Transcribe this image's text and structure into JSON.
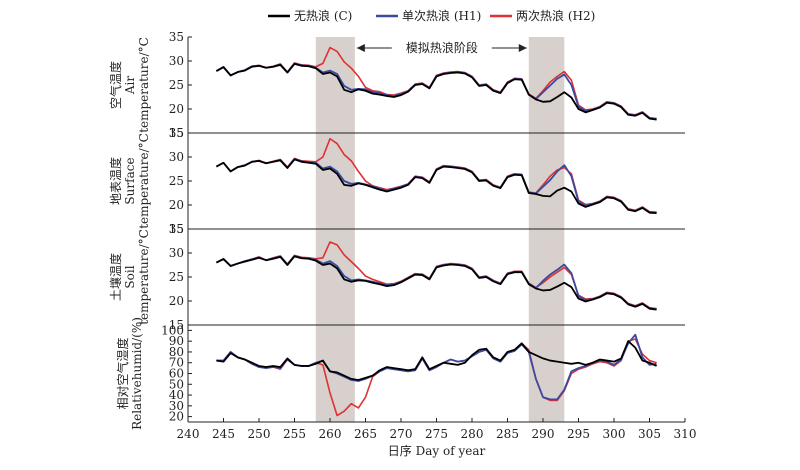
{
  "chart_data": {
    "type": "line",
    "xlabel": "日序 Day of year",
    "xlim": [
      240,
      310
    ],
    "xticks": [
      240,
      245,
      250,
      255,
      260,
      265,
      270,
      275,
      280,
      285,
      290,
      295,
      300,
      305,
      310
    ],
    "x_start": 244,
    "colors": {
      "C": "#000000",
      "H1": "#3b4aa0",
      "H2": "#e03030",
      "shade": "#d8d0cc"
    },
    "legend": {
      "placement": "top-center",
      "items": [
        {
          "key": "C",
          "label": "无热浪 (C)"
        },
        {
          "key": "H1",
          "label": "单次热浪 (H1)"
        },
        {
          "key": "H2",
          "label": "两次热浪 (H2)"
        }
      ]
    },
    "annotation": {
      "text": "模拟热浪阶段",
      "x_from": 263.5,
      "x_to": 288
    },
    "heatwave_periods": [
      [
        258,
        263.5
      ],
      [
        288,
        293
      ]
    ],
    "panels": [
      {
        "id": "air",
        "ylabel_lines": [
          "空气温度",
          "Air",
          "temperature/°C"
        ],
        "ylim": [
          15,
          35
        ],
        "yticks": [
          15,
          20,
          25,
          30,
          35
        ],
        "series": {
          "C": [
            27.9,
            28.7,
            27.0,
            27.7,
            28.0,
            28.8,
            29.0,
            28.6,
            28.8,
            29.2,
            27.6,
            29.4,
            29.0,
            28.9,
            28.5,
            27.3,
            27.6,
            26.8,
            24.0,
            23.5,
            24.1,
            23.8,
            23.2,
            23.0,
            22.7,
            22.5,
            22.9,
            23.6,
            25.0,
            25.2,
            24.3,
            26.8,
            27.3,
            27.5,
            27.6,
            27.4,
            26.6,
            24.8,
            25.0,
            23.8,
            23.3,
            25.4,
            26.2,
            26.1,
            23.0,
            22.0,
            21.5,
            21.6,
            22.5,
            23.5,
            22.4,
            20.0,
            19.3,
            19.8,
            20.3,
            21.3,
            21.1,
            20.4,
            18.8,
            18.6,
            19.2,
            18.0,
            17.8
          ],
          "H1": [
            27.9,
            28.8,
            27.0,
            27.7,
            28.1,
            28.9,
            29.0,
            28.6,
            28.8,
            29.3,
            27.6,
            29.5,
            29.1,
            29.0,
            28.6,
            27.6,
            28.0,
            27.3,
            24.8,
            24.0,
            24.2,
            24.1,
            23.5,
            23.3,
            22.9,
            22.7,
            23.1,
            23.7,
            25.1,
            25.3,
            24.4,
            26.9,
            27.4,
            27.6,
            27.7,
            27.5,
            26.7,
            24.9,
            25.1,
            23.9,
            23.4,
            25.5,
            26.3,
            26.2,
            23.0,
            22.1,
            23.5,
            24.9,
            26.3,
            27.2,
            25.0,
            20.5,
            19.6,
            19.9,
            20.4,
            21.4,
            21.2,
            20.5,
            18.9,
            18.7,
            19.3,
            18.1,
            17.9
          ],
          "H2": [
            27.9,
            28.8,
            27.0,
            27.7,
            28.1,
            28.9,
            29.1,
            28.6,
            28.9,
            29.4,
            27.7,
            29.6,
            29.2,
            29.1,
            28.8,
            29.5,
            32.8,
            32.0,
            29.8,
            28.5,
            26.8,
            24.5,
            23.8,
            23.6,
            23.0,
            22.9,
            23.3,
            23.8,
            25.2,
            25.4,
            24.5,
            27.0,
            27.5,
            27.7,
            27.8,
            27.6,
            26.8,
            25.0,
            25.2,
            24.0,
            23.5,
            25.6,
            26.4,
            26.3,
            23.1,
            22.2,
            23.8,
            25.6,
            26.8,
            27.8,
            26.0,
            20.8,
            19.8,
            20.0,
            20.5,
            21.5,
            21.3,
            20.6,
            19.0,
            18.8,
            19.4,
            18.2,
            18.0
          ]
        }
      },
      {
        "id": "surface",
        "ylabel_lines": [
          "地表温度",
          "Surface",
          "temperature/°C"
        ],
        "ylim": [
          15,
          35
        ],
        "yticks": [
          15,
          20,
          25,
          30,
          35
        ],
        "series": {
          "C": [
            28.0,
            28.8,
            27.0,
            27.9,
            28.2,
            29.0,
            29.2,
            28.7,
            29.0,
            29.3,
            27.7,
            29.5,
            29.0,
            28.8,
            28.6,
            27.3,
            27.6,
            26.5,
            24.2,
            24.0,
            24.5,
            24.2,
            23.7,
            23.2,
            22.8,
            23.2,
            23.6,
            24.2,
            25.8,
            25.6,
            24.6,
            27.3,
            28.0,
            27.9,
            27.7,
            27.5,
            26.8,
            25.0,
            25.1,
            24.0,
            23.5,
            25.8,
            26.3,
            26.2,
            22.5,
            22.3,
            21.9,
            21.8,
            23.0,
            23.6,
            22.8,
            20.3,
            19.6,
            20.1,
            20.6,
            21.6,
            21.4,
            20.7,
            19.0,
            18.7,
            19.4,
            18.4,
            18.3
          ],
          "H1": [
            28.0,
            28.8,
            27.0,
            27.9,
            28.3,
            29.0,
            29.2,
            28.7,
            29.0,
            29.4,
            27.8,
            29.6,
            29.1,
            28.9,
            28.8,
            27.6,
            28.0,
            27.0,
            25.0,
            24.4,
            24.6,
            24.3,
            23.9,
            23.4,
            23.0,
            23.4,
            23.8,
            24.3,
            25.9,
            25.7,
            24.7,
            27.4,
            28.1,
            28.0,
            27.8,
            27.6,
            26.9,
            25.1,
            25.2,
            24.1,
            23.6,
            25.9,
            26.4,
            26.3,
            22.6,
            22.4,
            23.8,
            25.2,
            27.0,
            28.3,
            26.0,
            20.7,
            19.9,
            20.2,
            20.7,
            21.7,
            21.5,
            20.8,
            19.1,
            18.8,
            19.5,
            18.5,
            18.4
          ],
          "H2": [
            28.0,
            28.8,
            27.0,
            27.9,
            28.3,
            29.0,
            29.3,
            28.7,
            29.1,
            29.5,
            27.9,
            29.7,
            29.2,
            29.1,
            29.0,
            30.0,
            33.8,
            32.8,
            30.5,
            29.2,
            27.0,
            25.0,
            24.0,
            23.6,
            23.2,
            23.5,
            23.9,
            24.4,
            26.0,
            25.8,
            24.8,
            27.5,
            28.2,
            28.1,
            27.9,
            27.7,
            27.0,
            25.2,
            25.3,
            24.2,
            23.7,
            26.0,
            26.5,
            26.4,
            22.7,
            22.5,
            24.2,
            26.0,
            27.3,
            27.8,
            26.5,
            21.0,
            20.1,
            20.3,
            20.8,
            21.8,
            21.6,
            20.9,
            19.2,
            18.9,
            19.6,
            18.6,
            18.5
          ]
        }
      },
      {
        "id": "soil",
        "ylabel_lines": [
          "土壤温度",
          "Soil",
          "temperature/°C"
        ],
        "ylim": [
          15,
          35
        ],
        "yticks": [
          15,
          20,
          25,
          30,
          35
        ],
        "series": {
          "C": [
            28.0,
            28.7,
            27.3,
            27.8,
            28.2,
            28.6,
            29.0,
            28.5,
            28.8,
            29.2,
            27.5,
            29.3,
            28.9,
            28.8,
            28.4,
            27.5,
            27.8,
            26.8,
            24.5,
            24.0,
            24.3,
            24.2,
            23.8,
            23.5,
            23.1,
            23.3,
            23.9,
            24.7,
            25.5,
            25.4,
            24.5,
            27.0,
            27.4,
            27.6,
            27.5,
            27.3,
            26.6,
            24.8,
            25.0,
            24.1,
            23.5,
            25.6,
            26.0,
            26.0,
            23.5,
            22.6,
            22.2,
            22.3,
            23.0,
            23.8,
            22.9,
            20.5,
            19.9,
            20.3,
            20.8,
            21.6,
            21.4,
            20.7,
            19.3,
            18.8,
            19.4,
            18.4,
            18.2
          ],
          "H1": [
            28.0,
            28.8,
            27.3,
            27.8,
            28.3,
            28.7,
            29.1,
            28.5,
            28.9,
            29.3,
            27.6,
            29.4,
            29.0,
            28.9,
            28.6,
            27.8,
            28.3,
            27.3,
            25.2,
            24.3,
            24.5,
            24.3,
            24.0,
            23.7,
            23.3,
            23.5,
            24.0,
            24.8,
            25.6,
            25.5,
            24.6,
            27.1,
            27.5,
            27.7,
            27.6,
            27.4,
            26.7,
            24.9,
            25.1,
            24.2,
            23.6,
            25.7,
            26.1,
            26.1,
            23.6,
            22.7,
            24.2,
            25.5,
            26.5,
            27.6,
            25.8,
            21.0,
            20.2,
            20.4,
            20.9,
            21.7,
            21.5,
            20.8,
            19.4,
            18.9,
            19.5,
            18.5,
            18.3
          ],
          "H2": [
            28.0,
            28.8,
            27.3,
            27.8,
            28.3,
            28.7,
            29.2,
            28.5,
            29.0,
            29.4,
            27.7,
            29.5,
            29.1,
            29.0,
            28.8,
            29.0,
            32.3,
            31.7,
            29.6,
            28.2,
            26.8,
            25.2,
            24.5,
            24.0,
            23.5,
            23.6,
            24.1,
            24.9,
            25.7,
            25.6,
            24.7,
            27.2,
            27.6,
            27.8,
            27.7,
            27.5,
            26.8,
            25.0,
            25.2,
            24.3,
            23.7,
            25.8,
            26.2,
            26.2,
            23.7,
            22.8,
            23.8,
            25.0,
            26.0,
            27.0,
            25.5,
            21.2,
            20.4,
            20.5,
            21.0,
            21.8,
            21.6,
            20.9,
            19.5,
            19.0,
            19.6,
            18.6,
            18.4
          ]
        }
      },
      {
        "id": "humidity",
        "ylabel_lines": [
          "相对空气湿度",
          "Relativehumid/(%)"
        ],
        "ylim": [
          15,
          105
        ],
        "yticks": [
          20,
          30,
          40,
          50,
          60,
          70,
          80,
          90,
          100
        ],
        "series": {
          "C": [
            72,
            71,
            79,
            75,
            73,
            70,
            67,
            66,
            67,
            66,
            74,
            68,
            67,
            67,
            69,
            72,
            62,
            61,
            58,
            55,
            54,
            56,
            58,
            63,
            66,
            65,
            64,
            63,
            64,
            75,
            64,
            67,
            70,
            69,
            68,
            70,
            77,
            82,
            83,
            75,
            72,
            80,
            82,
            88,
            80,
            77,
            74,
            72,
            71,
            70,
            69,
            70,
            68,
            70,
            73,
            72,
            71,
            74,
            90,
            84,
            72,
            70,
            67
          ],
          "H1": [
            72,
            72,
            80,
            75,
            73,
            69,
            66,
            65,
            66,
            65,
            73,
            68,
            67,
            67,
            70,
            72,
            62,
            60,
            57,
            54,
            53,
            55,
            58,
            62,
            65,
            64,
            63,
            62,
            63,
            74,
            63,
            66,
            70,
            73,
            71,
            72,
            76,
            80,
            82,
            74,
            71,
            79,
            81,
            87,
            80,
            55,
            38,
            36,
            36,
            45,
            62,
            65,
            67,
            70,
            72,
            71,
            68,
            73,
            88,
            96,
            75,
            68,
            69
          ],
          "H2": [
            72,
            72,
            80,
            75,
            73,
            69,
            66,
            66,
            66,
            64,
            73,
            68,
            67,
            67,
            70,
            68,
            42,
            21,
            25,
            32,
            28,
            38,
            57,
            62,
            65,
            64,
            63,
            62,
            63,
            74,
            63,
            66,
            70,
            73,
            71,
            72,
            76,
            80,
            82,
            74,
            71,
            79,
            81,
            88,
            82,
            55,
            38,
            35,
            35,
            44,
            60,
            64,
            66,
            69,
            71,
            70,
            67,
            72,
            90,
            92,
            78,
            72,
            70
          ]
        }
      }
    ]
  }
}
